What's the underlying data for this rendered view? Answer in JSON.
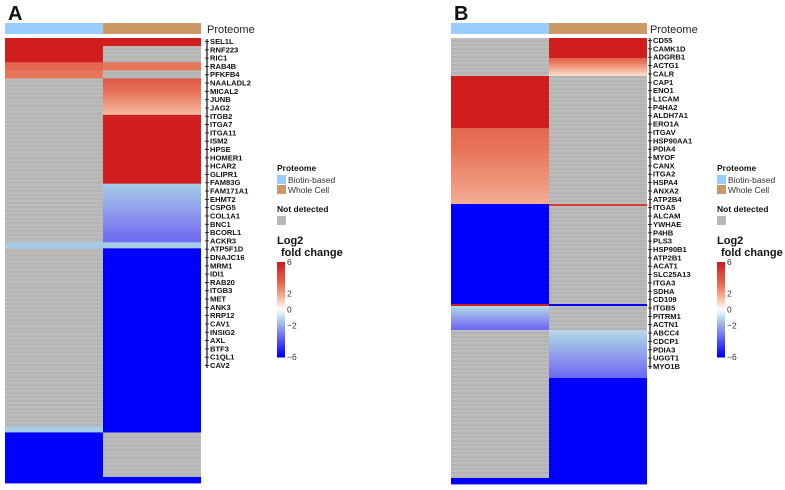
{
  "chart_data": [
    {
      "type": "heatmap",
      "panel": "A",
      "annotation_title": "Proteome",
      "columns": [
        "Biotin-based",
        "Whole Cell"
      ],
      "segments": [
        {
          "rows": 4,
          "values": [
            6,
            6
          ]
        },
        {
          "rows": 8,
          "values": [
            6,
            null
          ]
        },
        {
          "rows": 4,
          "values": [
            3.5,
            3
          ]
        },
        {
          "rows": 4,
          "values": [
            3,
            null
          ]
        },
        {
          "rows": 18,
          "values": [
            null,
            [
              4,
              1.5
            ]
          ]
        },
        {
          "rows": 34,
          "values": [
            null,
            6
          ]
        },
        {
          "rows": 29,
          "values": [
            null,
            [
              -1.5,
              -3.5
            ]
          ]
        },
        {
          "rows": 3,
          "values": [
            -1.5,
            -1.5
          ]
        },
        {
          "rows": 88,
          "values": [
            null,
            -6
          ]
        },
        {
          "rows": 3,
          "values": [
            -1.5,
            -6
          ]
        },
        {
          "rows": 22,
          "values": [
            -6,
            null
          ]
        },
        {
          "rows": 3,
          "values": [
            -6,
            -6
          ]
        }
      ],
      "genes": [
        "SEL1L",
        "RNF223",
        "RIC1",
        "RAB4B",
        "PFKFB4",
        "NAALADL2",
        "MICAL2",
        "JUNB",
        "JAG2",
        "ITGB2",
        "ITGA7",
        "ITGA11",
        "ISM2",
        "HPSE",
        "HOMER1",
        "HCAR2",
        "GLIPR1",
        "FAM83G",
        "FAM171A1",
        "EHMT2",
        "CSPG5",
        "COL1A1",
        "BNC1",
        "BCORL1",
        "ACKR3",
        "ATP5F1D",
        "DNAJC16",
        "MRM1",
        "IDI1",
        "RAB20",
        "ITGB3",
        "MET",
        "ANK3",
        "RRP12",
        "CAV1",
        "INSIG2",
        "AXL",
        "BTF3",
        "C1QL1",
        "CAV2"
      ]
    },
    {
      "type": "heatmap",
      "panel": "B",
      "annotation_title": "Proteome",
      "columns": [
        "Biotin-based",
        "Whole Cell"
      ],
      "segments": [
        {
          "rows": 10,
          "values": [
            null,
            6
          ]
        },
        {
          "rows": 9,
          "values": [
            null,
            [
              3.5,
              0.8
            ]
          ]
        },
        {
          "rows": 26,
          "values": [
            6,
            null
          ]
        },
        {
          "rows": 38,
          "values": [
            [
              3.5,
              1.8
            ],
            null
          ]
        },
        {
          "rows": 1,
          "values": [
            -6,
            5
          ]
        },
        {
          "rows": 49,
          "values": [
            -6,
            null
          ]
        },
        {
          "rows": 1,
          "values": [
            6,
            -6
          ]
        },
        {
          "rows": 12,
          "values": [
            [
              -1.3,
              -3.5
            ],
            null
          ]
        },
        {
          "rows": 24,
          "values": [
            null,
            [
              -1.2,
              -3.5
            ]
          ]
        },
        {
          "rows": 50,
          "values": [
            null,
            -6
          ]
        },
        {
          "rows": 3,
          "values": [
            -6,
            -6
          ]
        }
      ],
      "genes": [
        "CD55",
        "CAMK1D",
        "ADGRB1",
        "ACTG1",
        "CALR",
        "CAP1",
        "ENO1",
        "L1CAM",
        "P4HA2",
        "ALDH7A1",
        "ERO1A",
        "ITGAV",
        "HSP90AA1",
        "PDIA4",
        "MYOF",
        "CANX",
        "ITGA2",
        "HSPA4",
        "ANXA2",
        "ATP2B4",
        "ITGA5",
        "ALCAM",
        "YWHAE",
        "P4HB",
        "PLS3",
        "HSP90B1",
        "ATP2B1",
        "ACAT1",
        "SLC25A13",
        "ITGA3",
        "SDHA",
        "CD109",
        "ITGB5",
        "PITRM1",
        "ACTN1",
        "ABCC4",
        "CDCP1",
        "PDIA3",
        "UGGT1",
        "MYO1B"
      ]
    }
  ],
  "legend": {
    "proteome_title": "Proteome",
    "proteome_items": [
      {
        "label": "Biotin-based",
        "color": "#99ccff"
      },
      {
        "label": "Whole Cell",
        "color": "#cc9966"
      }
    ],
    "not_detected_title": "Not detected",
    "not_detected_color": "#b8b8b8",
    "scale_title_1": "Log2",
    "scale_title_2": "fold change",
    "scale_range": [
      -6,
      6
    ],
    "ticks": [
      "6",
      "2",
      "0",
      "−2",
      "−6"
    ],
    "tick_values": [
      6,
      2,
      0,
      -2,
      -6
    ]
  },
  "colors": {
    "high": "#d01e1e",
    "mid_high": "#e8765a",
    "zero": "#ffffff",
    "mid_low": "#8080f0",
    "low": "#0000ff",
    "not_detected": "#b8b8b8"
  }
}
